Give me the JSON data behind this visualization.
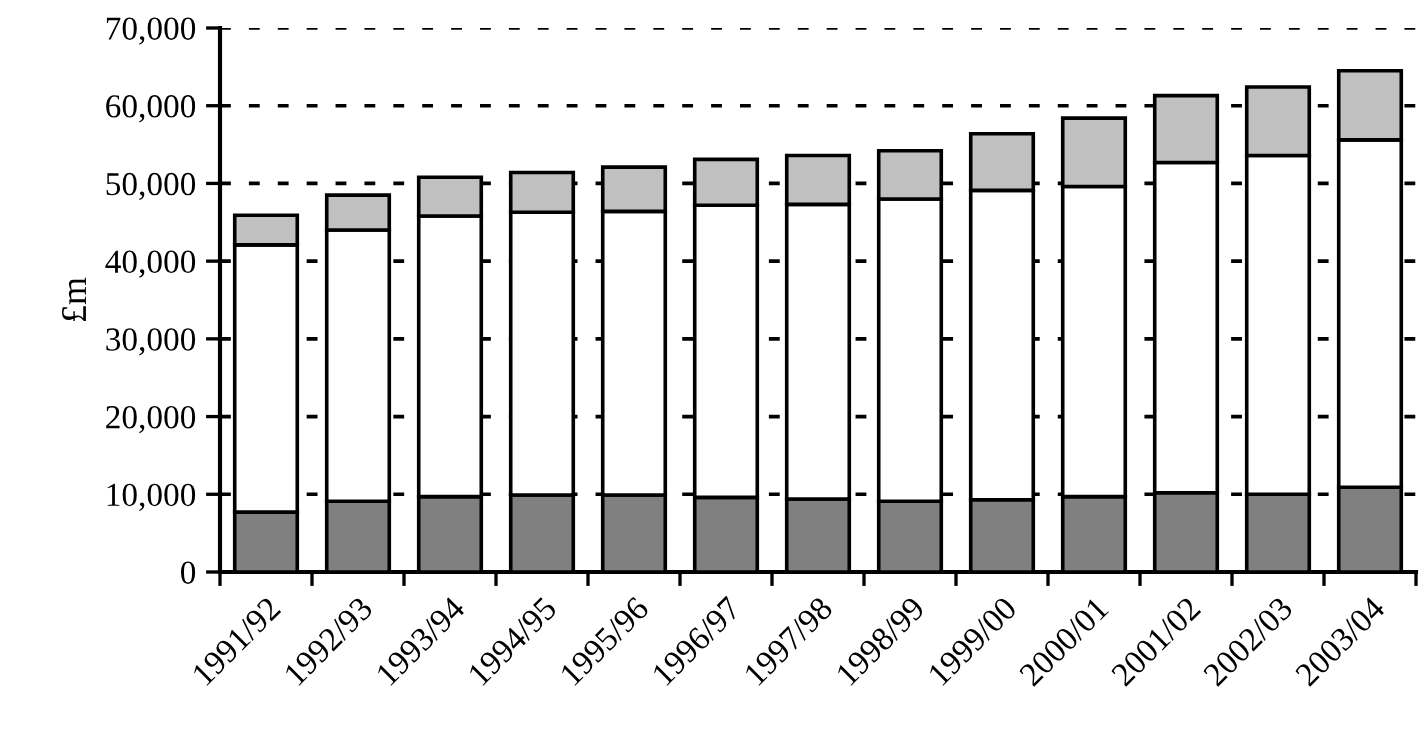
{
  "chart_data": {
    "type": "bar",
    "stacked": true,
    "ylabel": "£m",
    "categories": [
      "1991/92",
      "1992/93",
      "1993/94",
      "1994/95",
      "1995/96",
      "1996/97",
      "1997/98",
      "1998/99",
      "1999/00",
      "2000/01",
      "2001/02",
      "2002/03",
      "2003/04"
    ],
    "series": [
      {
        "color": "#808080",
        "values": [
          7700,
          9100,
          9700,
          9900,
          9900,
          9600,
          9400,
          9100,
          9300,
          9700,
          10200,
          10000,
          10900
        ]
      },
      {
        "color": "#ffffff",
        "values": [
          34400,
          34900,
          36100,
          36400,
          36500,
          37600,
          37900,
          38900,
          39800,
          39900,
          42500,
          43600,
          44700
        ]
      },
      {
        "color": "#c0c0c0",
        "values": [
          3800,
          4500,
          5000,
          5100,
          5700,
          5900,
          6300,
          6200,
          7300,
          8800,
          8600,
          8800,
          8900
        ]
      }
    ],
    "ylim": [
      0,
      70000
    ],
    "yticks": [
      {
        "value": 0,
        "label": "0"
      },
      {
        "value": 10000,
        "label": "10,000"
      },
      {
        "value": 20000,
        "label": "20,000"
      },
      {
        "value": 30000,
        "label": "30,000"
      },
      {
        "value": 40000,
        "label": "40,000"
      },
      {
        "value": 50000,
        "label": "50,000"
      },
      {
        "value": 60000,
        "label": "60,000"
      },
      {
        "value": 70000,
        "label": "70,000"
      }
    ],
    "grid": "y"
  }
}
